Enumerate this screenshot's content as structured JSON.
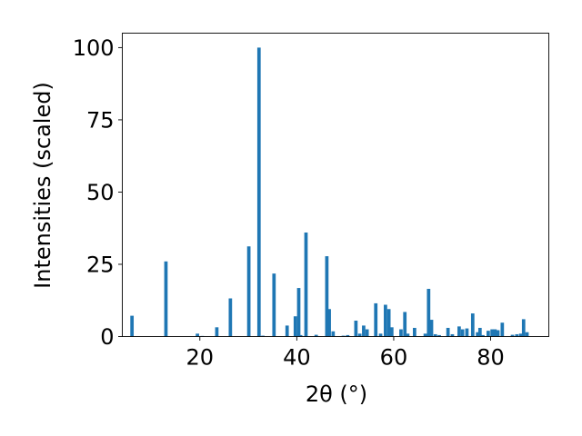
{
  "chart_data": {
    "type": "bar",
    "xlabel": "2θ (°)",
    "ylabel": "Intensities (scaled)",
    "xlim": [
      4.0,
      92.0
    ],
    "ylim": [
      0,
      105
    ],
    "xticks": [
      20,
      40,
      60,
      80
    ],
    "yticks": [
      0,
      25,
      50,
      75,
      100
    ],
    "color": "#1f77b4",
    "bar_width": 0.7,
    "grid": false,
    "x": [
      6.0,
      13.0,
      19.5,
      20.5,
      23.5,
      26.3,
      30.1,
      32.2,
      33.0,
      35.3,
      38.0,
      39.7,
      40.4,
      40.8,
      41.9,
      44.0,
      46.2,
      46.7,
      47.5,
      49.6,
      50.5,
      52.2,
      53.0,
      53.8,
      54.5,
      56.3,
      57.3,
      58.3,
      59.0,
      59.6,
      61.5,
      62.3,
      62.9,
      64.3,
      66.5,
      67.2,
      67.8,
      68.6,
      69.4,
      71.2,
      72.1,
      73.5,
      74.2,
      75.1,
      76.3,
      77.3,
      77.8,
      78.4,
      79.5,
      80.3,
      80.9,
      81.5,
      82.4,
      84.5,
      85.4,
      86.2,
      86.8,
      87.5
    ],
    "values": [
      7.2,
      26.0,
      1.0,
      0.2,
      3.2,
      13.2,
      31.2,
      100.0,
      0.3,
      21.8,
      3.8,
      7.0,
      16.8,
      0.5,
      36.0,
      0.6,
      27.8,
      9.5,
      1.8,
      0.3,
      0.5,
      5.5,
      1.0,
      3.8,
      2.5,
      11.5,
      1.0,
      11.0,
      9.5,
      3.2,
      2.5,
      8.5,
      1.0,
      3.0,
      1.0,
      16.5,
      5.8,
      0.8,
      0.5,
      3.0,
      0.8,
      3.5,
      2.5,
      2.8,
      8.0,
      1.5,
      3.0,
      0.5,
      2.0,
      2.5,
      2.5,
      2.2,
      4.8,
      0.6,
      0.8,
      1.0,
      6.0,
      1.5
    ]
  }
}
